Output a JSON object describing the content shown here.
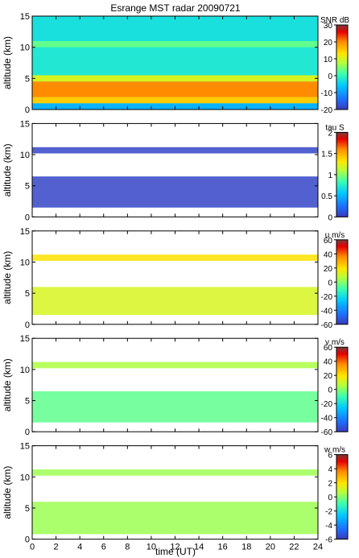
{
  "figure": {
    "title": "Esrange MST radar 20090721",
    "xlabel": "time (UT)"
  },
  "chart_data": [
    {
      "type": "heatmap",
      "ylabel": "altitude (km)",
      "colorbar_label": "SNR dB",
      "xlim": [
        0,
        24
      ],
      "ylim": [
        0,
        15
      ],
      "xticks": [
        "0",
        "2",
        "4",
        "6",
        "8",
        "10",
        "12",
        "14",
        "16",
        "18",
        "20",
        "22",
        "24"
      ],
      "yticks": [
        "0",
        "5",
        "10",
        "15"
      ],
      "clim": [
        -20,
        30
      ],
      "cticks": [
        "-20",
        "-10",
        "0",
        "10",
        "20",
        "30"
      ],
      "layers": [
        {
          "alt_range": [
            0,
            1.0
          ],
          "value": -8
        },
        {
          "alt_range": [
            1.0,
            2.0
          ],
          "value": 15
        },
        {
          "alt_range": [
            2.0,
            4.5
          ],
          "value": 20
        },
        {
          "alt_range": [
            4.5,
            5.5
          ],
          "value": 10
        },
        {
          "alt_range": [
            5.5,
            10.0
          ],
          "value": -2
        },
        {
          "alt_range": [
            10.0,
            11.0
          ],
          "value": 3
        },
        {
          "alt_range": [
            11.0,
            15.0
          ],
          "value": -3
        }
      ]
    },
    {
      "type": "heatmap",
      "ylabel": "altitude (km)",
      "colorbar_label": "tau S",
      "xlim": [
        0,
        24
      ],
      "ylim": [
        0,
        15
      ],
      "xticks": [
        "0",
        "2",
        "4",
        "6",
        "8",
        "10",
        "12",
        "14",
        "16",
        "18",
        "20",
        "22",
        "24"
      ],
      "yticks": [
        "0",
        "5",
        "10",
        "15"
      ],
      "clim": [
        0,
        2
      ],
      "cticks": [
        "0",
        "0.5",
        "1",
        "1.5",
        "2"
      ],
      "layers": [
        {
          "alt_range": [
            1.5,
            6.5
          ],
          "value": 0.05
        },
        {
          "alt_range": [
            10.2,
            11.2
          ],
          "value": 0.05
        }
      ]
    },
    {
      "type": "heatmap",
      "ylabel": "altitude (km)",
      "colorbar_label": "u m/s",
      "xlim": [
        0,
        24
      ],
      "ylim": [
        0,
        15
      ],
      "xticks": [
        "0",
        "2",
        "4",
        "6",
        "8",
        "10",
        "12",
        "14",
        "16",
        "18",
        "20",
        "22",
        "24"
      ],
      "yticks": [
        "0",
        "5",
        "10",
        "15"
      ],
      "clim": [
        -60,
        60
      ],
      "cticks": [
        "-60",
        "-40",
        "-20",
        "0",
        "20",
        "40",
        "60"
      ],
      "layers": [
        {
          "alt_range": [
            1.5,
            6.0
          ],
          "value": 12
        },
        {
          "alt_range": [
            10.2,
            11.2
          ],
          "value": 20
        }
      ]
    },
    {
      "type": "heatmap",
      "ylabel": "altitude (km)",
      "colorbar_label": "v m/s",
      "xlim": [
        0,
        24
      ],
      "ylim": [
        0,
        15
      ],
      "xticks": [
        "0",
        "2",
        "4",
        "6",
        "8",
        "10",
        "12",
        "14",
        "16",
        "18",
        "20",
        "22",
        "24"
      ],
      "yticks": [
        "0",
        "5",
        "10",
        "15"
      ],
      "clim": [
        -60,
        60
      ],
      "cticks": [
        "-60",
        "-40",
        "-20",
        "0",
        "20",
        "40",
        "60"
      ],
      "layers": [
        {
          "alt_range": [
            1.5,
            6.5
          ],
          "value": -5
        },
        {
          "alt_range": [
            10.2,
            11.2
          ],
          "value": 5
        }
      ]
    },
    {
      "type": "heatmap",
      "ylabel": "altitude (km)",
      "colorbar_label": "w m/s",
      "xlim": [
        0,
        24
      ],
      "ylim": [
        0,
        15
      ],
      "xticks": [
        "0",
        "2",
        "4",
        "6",
        "8",
        "10",
        "12",
        "14",
        "16",
        "18",
        "20",
        "22",
        "24"
      ],
      "yticks": [
        "0",
        "5",
        "10",
        "15"
      ],
      "clim": [
        -6,
        6
      ],
      "cticks": [
        "-6",
        "-4",
        "-2",
        "0",
        "2",
        "4",
        "6"
      ],
      "layers": [
        {
          "alt_range": [
            0.8,
            6.0
          ],
          "value": 0.3
        },
        {
          "alt_range": [
            10.2,
            11.2
          ],
          "value": 0.3
        }
      ]
    }
  ]
}
